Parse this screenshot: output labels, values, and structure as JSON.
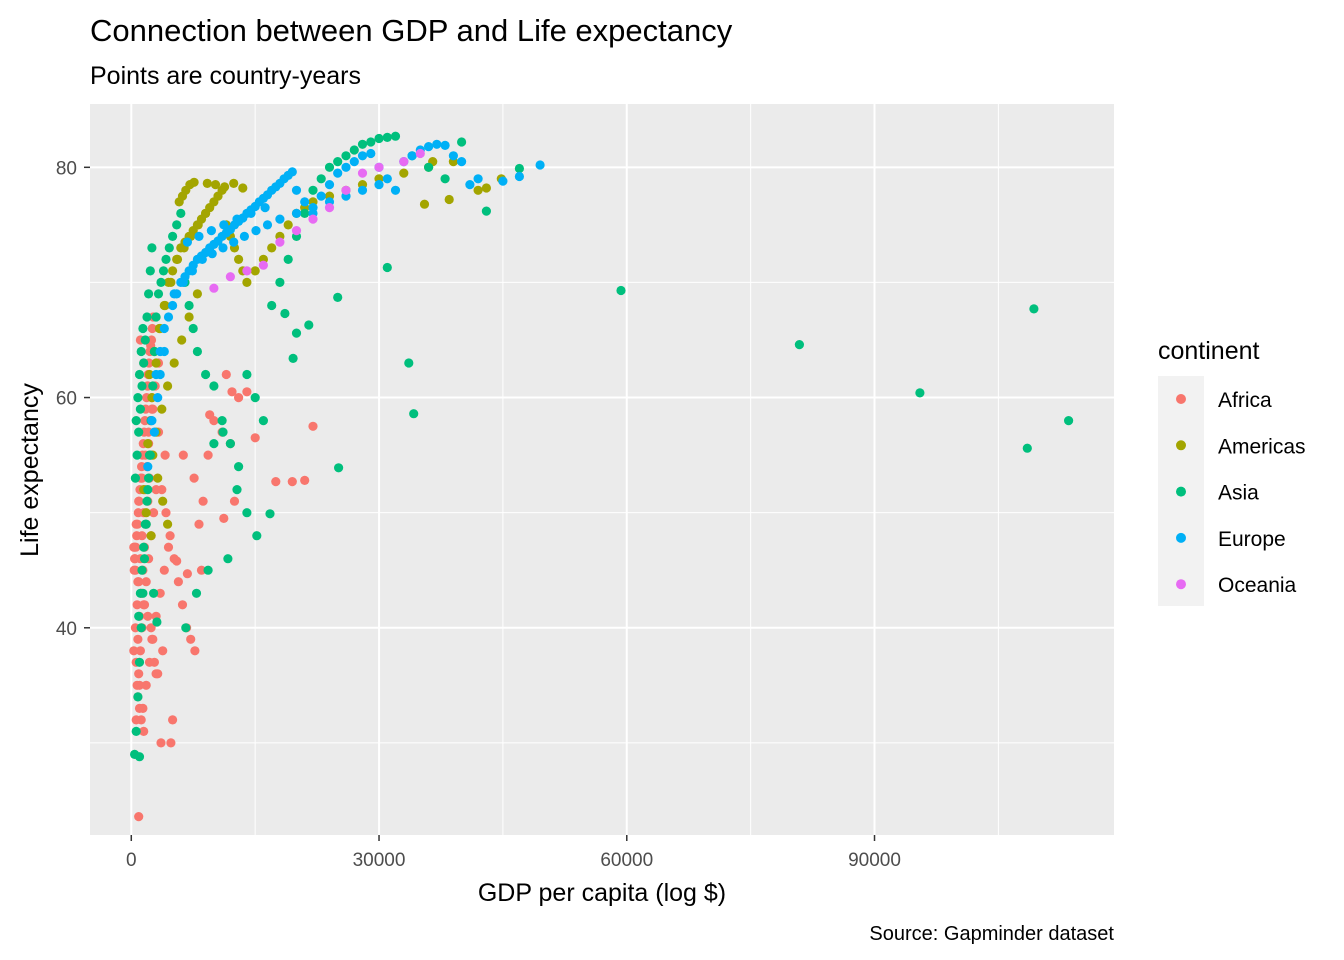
{
  "chart_data": {
    "type": "scatter",
    "title": "Connection between GDP and Life expectancy",
    "subtitle": "Points are country-years",
    "xlabel": "GDP per capita (log $)",
    "ylabel": "Life expectancy",
    "caption": "Source: Gapminder dataset",
    "xlim": [
      -5000,
      119000
    ],
    "ylim": [
      22,
      85.5
    ],
    "x_ticks": [
      0,
      30000,
      60000,
      90000
    ],
    "x_tick_labels": [
      "0",
      "30000",
      "60000",
      "90000"
    ],
    "y_ticks": [
      40,
      60,
      80
    ],
    "y_tick_labels": [
      "40",
      "60",
      "80"
    ],
    "grid": true,
    "legend": {
      "title": "continent",
      "position": "right",
      "entries": [
        {
          "name": "Africa",
          "color": "#F8766D"
        },
        {
          "name": "Americas",
          "color": "#A3A500"
        },
        {
          "name": "Asia",
          "color": "#00BF7D"
        },
        {
          "name": "Europe",
          "color": "#00B0F6"
        },
        {
          "name": "Oceania",
          "color": "#E76BF3"
        }
      ]
    },
    "series": [
      {
        "name": "Africa",
        "color": "#F8766D",
        "x": [
          300,
          500,
          700,
          900,
          1100,
          1300,
          1500,
          1700,
          1900,
          2100,
          2300,
          2500,
          600,
          800,
          1000,
          1200,
          1400,
          1600,
          1800,
          2000,
          2200,
          2400,
          700,
          900,
          1100,
          1300,
          1500,
          1800,
          2100,
          2400,
          2700,
          3000,
          800,
          1000,
          1200,
          1500,
          1800,
          2200,
          2600,
          3000,
          3500,
          4000,
          400,
          600,
          900,
          1300,
          1700,
          2100,
          2500,
          2900,
          3300,
          3700,
          4200,
          4700,
          5200,
          5700,
          6200,
          6700,
          7200,
          7700,
          8200,
          8700,
          9300,
          10000,
          11000,
          12000,
          13000,
          14000,
          15000,
          17500,
          19500,
          21000,
          22000,
          12500,
          11200,
          8500,
          6800,
          5500,
          4500,
          3800,
          3200,
          2800,
          2400,
          2000,
          1600,
          1200,
          800,
          500,
          400,
          300,
          3600,
          4800,
          5000,
          3000,
          2500,
          900,
          600,
          1400,
          1000,
          11500,
          12200,
          9500,
          7600,
          6300,
          1100,
          1500,
          2000,
          2600,
          3300,
          4100,
          350,
          450,
          550,
          650,
          750,
          850,
          950,
          1050,
          1150,
          1250,
          1350,
          1450,
          1550,
          1650,
          1750,
          1850,
          1950,
          2050,
          2150,
          2250,
          2350,
          2450,
          2550,
          2650
        ],
        "y": [
          38,
          40,
          42,
          44,
          46,
          48,
          50,
          52,
          54,
          56,
          58,
          60,
          37,
          39,
          41,
          43,
          45,
          47,
          49,
          51,
          53,
          55,
          35,
          36,
          38,
          40,
          42,
          44,
          46,
          48,
          50,
          52,
          34,
          33,
          32,
          31,
          35,
          37,
          39,
          41,
          43,
          45,
          47,
          49,
          51,
          53,
          55,
          57,
          59,
          61,
          63,
          52,
          50,
          48,
          46,
          44,
          42,
          40,
          39,
          38,
          49,
          51,
          55,
          58,
          57,
          56,
          60,
          60.5,
          56.5,
          52.7,
          52.7,
          52.8,
          57.5,
          51,
          49.5,
          45,
          44.7,
          45.8,
          47,
          38,
          36,
          37,
          40,
          41,
          42,
          43,
          44,
          45,
          46,
          47,
          30,
          30,
          32,
          36,
          39,
          23.6,
          32,
          33,
          35,
          62,
          60.5,
          58.5,
          53,
          55,
          65,
          63,
          61,
          59,
          57,
          55,
          45,
          46,
          47,
          48,
          49,
          50,
          51,
          52,
          53,
          54,
          55,
          56,
          57,
          58,
          59,
          60,
          61,
          62,
          63,
          64,
          64.5,
          65,
          66,
          67
        ]
      },
      {
        "name": "Americas",
        "color": "#A3A500",
        "x": [
          1500,
          2000,
          2500,
          3000,
          3500,
          4000,
          4500,
          5000,
          5500,
          6000,
          6500,
          7000,
          7500,
          8000,
          8500,
          9000,
          9500,
          10000,
          10500,
          11000,
          11500,
          12000,
          12500,
          13000,
          13500,
          14000,
          15000,
          16000,
          17000,
          18000,
          19000,
          20000,
          21000,
          22000,
          24000,
          26000,
          28000,
          30000,
          33000,
          36000,
          39000,
          42000,
          2200,
          2800,
          3400,
          4100,
          4800,
          5600,
          6400,
          7200,
          8100,
          9000,
          3000,
          3700,
          4400,
          5200,
          6100,
          7000,
          8000,
          5800,
          6200,
          6600,
          7100,
          7600,
          2600,
          3200,
          3800,
          4400,
          1800,
          2400,
          9200,
          10200,
          11300,
          12400,
          13500,
          35500,
          36500,
          38500,
          43000,
          44800
        ],
        "y": [
          52,
          56,
          60,
          63,
          66,
          68,
          70,
          71,
          72,
          73,
          73.5,
          74,
          74.5,
          75,
          75.5,
          76,
          76.5,
          77,
          77.5,
          78,
          75,
          74,
          73,
          72,
          71,
          70,
          71,
          72,
          73,
          74,
          75,
          76,
          76.5,
          77,
          77.5,
          78,
          78.5,
          79,
          79.5,
          80,
          80.5,
          78,
          62,
          64,
          66,
          68,
          70,
          72,
          73,
          74,
          75,
          76,
          57,
          59,
          61,
          63,
          65,
          67,
          69,
          77,
          77.5,
          78,
          78.5,
          78.7,
          55,
          53,
          51,
          49,
          50,
          48,
          78.6,
          78.5,
          78.3,
          78.6,
          78.2,
          76.8,
          80.5,
          77.2,
          78.2,
          79
        ]
      },
      {
        "name": "Asia",
        "color": "#00BF7D",
        "x": [
          400,
          600,
          800,
          1000,
          1200,
          1400,
          1600,
          1800,
          2000,
          2200,
          2400,
          2600,
          2800,
          3000,
          3300,
          3600,
          3900,
          4200,
          4600,
          5000,
          5500,
          6000,
          6500,
          7000,
          7500,
          8000,
          9000,
          10000,
          11000,
          12000,
          13000,
          14000,
          15000,
          16000,
          17000,
          18000,
          19000,
          20000,
          21000,
          22000,
          23000,
          24000,
          25000,
          26000,
          27000,
          28000,
          29000,
          30000,
          31000,
          32000,
          34000,
          36000,
          38000,
          40000,
          43000,
          47000,
          500,
          700,
          900,
          1100,
          1300,
          1500,
          1700,
          1900,
          2100,
          2300,
          2500,
          900,
          1100,
          1300,
          1500,
          1700,
          1900,
          2100,
          2300,
          600,
          800,
          1000,
          1200,
          1400,
          59300,
          80900,
          95500,
          108500,
          109300,
          113500,
          33600,
          34200,
          31000,
          25000,
          25100,
          16800,
          11700,
          11100,
          7900,
          6600,
          9300,
          14000,
          19600,
          21500,
          20000,
          18600,
          10000,
          12800,
          15200,
          2700,
          3100,
          1000
        ],
        "y": [
          29,
          31,
          34,
          37,
          40,
          43,
          46,
          49,
          52,
          55,
          58,
          61,
          64,
          67,
          69,
          70,
          71,
          72,
          73,
          74,
          75,
          76,
          70,
          68,
          66,
          64,
          62,
          61,
          58,
          56,
          54,
          62,
          60,
          58,
          68,
          70,
          72,
          74,
          76,
          78,
          79,
          80,
          80.5,
          81,
          81.5,
          82,
          82.2,
          82.5,
          82.6,
          82.7,
          81,
          80,
          79,
          82.2,
          76.2,
          79.9,
          53,
          55,
          57,
          59,
          61,
          63,
          65,
          67,
          69,
          71,
          73,
          41,
          43,
          45,
          47,
          49,
          51,
          53,
          55,
          58,
          60,
          62,
          64,
          66,
          69.3,
          64.6,
          60.4,
          55.6,
          67.7,
          58,
          63,
          58.6,
          71.3,
          68.7,
          53.9,
          49.9,
          46,
          57,
          43,
          40,
          45,
          50,
          63.4,
          66.3,
          65.6,
          67.3,
          56,
          52,
          48,
          43,
          40.5,
          28.8
        ]
      },
      {
        "name": "Europe",
        "color": "#00B0F6",
        "x": [
          2000,
          2500,
          3000,
          3500,
          4000,
          4500,
          5000,
          5500,
          6000,
          6500,
          7000,
          7500,
          8000,
          8500,
          9000,
          9500,
          10000,
          10500,
          11000,
          11500,
          12000,
          12500,
          13000,
          13500,
          14000,
          14500,
          15000,
          15500,
          16000,
          16500,
          17000,
          17500,
          18000,
          18500,
          19000,
          19500,
          20000,
          21000,
          22000,
          23000,
          24000,
          25000,
          26000,
          27000,
          28000,
          29000,
          30000,
          31000,
          32000,
          33000,
          34000,
          35000,
          36000,
          37000,
          38000,
          39000,
          40000,
          41000,
          42000,
          45000,
          47000,
          49500,
          5200,
          6300,
          7400,
          8600,
          9800,
          11100,
          12400,
          13700,
          15100,
          16500,
          18000,
          20000,
          22000,
          24000,
          26000,
          28000,
          30000,
          6800,
          8200,
          9700,
          11200,
          12800,
          14500,
          16200,
          4000,
          3500,
          3200,
          2800
        ],
        "y": [
          54,
          58,
          62,
          64,
          66,
          67,
          68,
          69,
          70,
          70.5,
          71,
          71.5,
          72,
          72.3,
          72.6,
          73,
          73.3,
          73.6,
          74,
          74.3,
          74.6,
          75,
          75.3,
          75.6,
          76,
          76.3,
          76.6,
          77,
          77.3,
          77.6,
          78,
          78.3,
          78.6,
          79,
          79.3,
          79.6,
          78,
          77,
          76,
          77.5,
          78.5,
          79.5,
          80,
          80.5,
          81,
          81.2,
          80,
          79,
          78,
          80.5,
          81,
          81.5,
          81.8,
          82,
          81.9,
          81,
          80.5,
          78.5,
          79,
          78.8,
          79.2,
          80.2,
          69,
          70,
          71,
          72,
          72.5,
          73,
          73.5,
          74,
          74.5,
          75,
          75.5,
          76,
          76.5,
          77,
          77.5,
          78,
          78.5,
          73.5,
          74,
          74.5,
          75,
          75.5,
          76,
          76.5,
          64,
          62,
          60,
          57
        ]
      },
      {
        "name": "Oceania",
        "color": "#E76BF3",
        "x": [
          10000,
          12000,
          14000,
          16000,
          18000,
          20000,
          22000,
          24000,
          26000,
          28000,
          30000,
          33000,
          35000
        ],
        "y": [
          69.5,
          70.5,
          71,
          71.5,
          73.5,
          74.5,
          75.5,
          76.5,
          78,
          79.5,
          80,
          80.5,
          81.2
        ]
      }
    ]
  }
}
